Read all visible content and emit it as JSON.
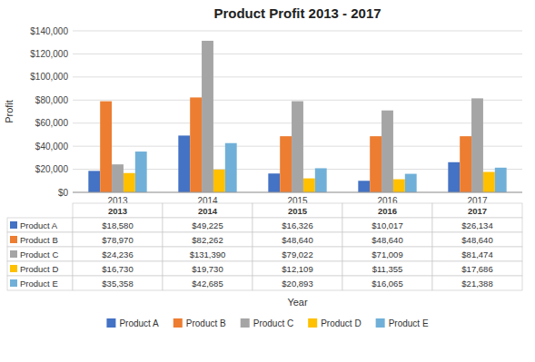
{
  "chart_data": {
    "type": "bar",
    "title": "Product Profit 2013 - 2017",
    "x_label": "Year",
    "y_label": "Profit",
    "categories": [
      2013,
      2014,
      2015,
      2016,
      2017
    ],
    "series": [
      {
        "name": "Product A",
        "color": "#4472C4",
        "values": [
          18580,
          49225,
          16326,
          10017,
          26134
        ],
        "value_labels": [
          "$18,580",
          "$49,225",
          "$16,326",
          "$10,017",
          "$26,134"
        ]
      },
      {
        "name": "Product B",
        "color": "#ED7D31",
        "values": [
          78970,
          82262,
          48640,
          48640,
          48640
        ],
        "value_labels": [
          "$78,970",
          "$82,262",
          "$48,640",
          "$48,640",
          "$48,640"
        ]
      },
      {
        "name": "Product C",
        "color": "#A5A5A5",
        "values": [
          24236,
          131390,
          79022,
          71009,
          81474
        ],
        "value_labels": [
          "$24,236",
          "$131,390",
          "$79,022",
          "$71,009",
          "$81,474"
        ]
      },
      {
        "name": "Product D",
        "color": "#FFC000",
        "values": [
          16730,
          19730,
          12109,
          11355,
          17686
        ],
        "value_labels": [
          "$16,730",
          "$19,730",
          "$12,109",
          "$11,355",
          "$17,686"
        ]
      },
      {
        "name": "Product E",
        "color": "#70B0D8",
        "values": [
          35358,
          42685,
          20893,
          16065,
          21388
        ],
        "value_labels": [
          "$35,358",
          "$42,685",
          "$20,893",
          "$16,065",
          "$21,388"
        ]
      }
    ],
    "ylim": [
      0,
      140000
    ],
    "yticks": [
      {
        "value": 0,
        "label": "$0"
      },
      {
        "value": 20000,
        "label": "$20,000"
      },
      {
        "value": 40000,
        "label": "$40,000"
      },
      {
        "value": 60000,
        "label": "$60,000"
      },
      {
        "value": 80000,
        "label": "$80,000"
      },
      {
        "value": 100000,
        "label": "$100,000"
      },
      {
        "value": 120000,
        "label": "$120,000"
      },
      {
        "value": 140000,
        "label": "$140,000"
      }
    ],
    "grid": true,
    "legend": "bottom"
  }
}
